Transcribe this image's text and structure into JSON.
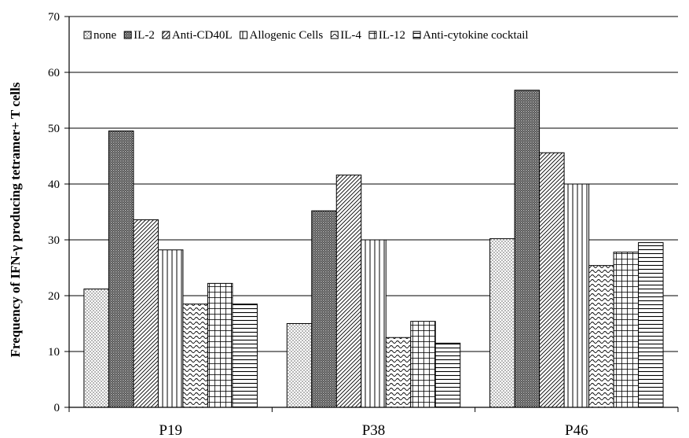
{
  "chart_data": {
    "type": "bar",
    "categories": [
      "P19",
      "P38",
      "P46"
    ],
    "series": [
      {
        "name": "none",
        "values": [
          21.2,
          15.0,
          30.2
        ],
        "pattern": "dots"
      },
      {
        "name": "IL-2",
        "values": [
          49.5,
          35.2,
          56.8
        ],
        "pattern": "dense-check"
      },
      {
        "name": "Anti-CD40L",
        "values": [
          33.6,
          41.6,
          45.6
        ],
        "pattern": "diagonal"
      },
      {
        "name": "Allogenic Cells",
        "values": [
          28.2,
          30.0,
          40.0
        ],
        "pattern": "vertical"
      },
      {
        "name": "IL-4",
        "values": [
          18.5,
          12.5,
          25.4
        ],
        "pattern": "wave"
      },
      {
        "name": "IL-12",
        "values": [
          22.2,
          15.4,
          27.8
        ],
        "pattern": "grid"
      },
      {
        "name": "Anti-cytokine cocktail",
        "values": [
          18.5,
          11.5,
          29.5
        ],
        "pattern": "horizontal"
      }
    ],
    "ylabel": "Frequency of IFN-γ producing tetramer+ T cells",
    "xlabel": "",
    "ylim": [
      0,
      70
    ],
    "yticks": [
      0,
      10,
      20,
      30,
      40,
      50,
      60,
      70
    ],
    "grid": true,
    "legend_position": "top",
    "colors": {
      "bar_fill": "#ffffff",
      "ink": "#000000",
      "grid": "#000000"
    }
  }
}
